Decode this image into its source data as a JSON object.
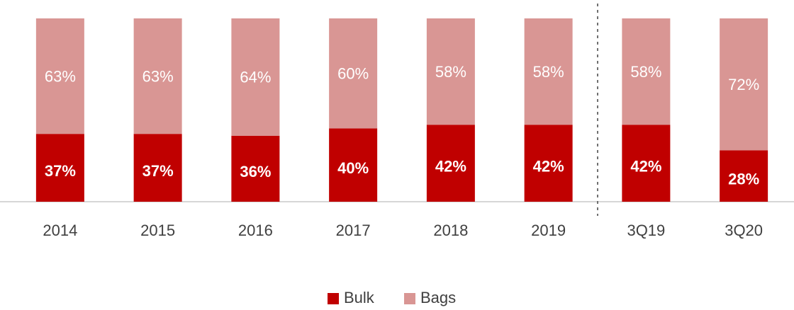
{
  "chart_data": {
    "type": "stacked_bar",
    "categories": [
      "2014",
      "2015",
      "2016",
      "2017",
      "2018",
      "2019",
      "3Q19",
      "3Q20"
    ],
    "series": [
      {
        "name": "Bulk",
        "color": "#c00000",
        "values": [
          37,
          37,
          36,
          40,
          42,
          42,
          42,
          28
        ],
        "value_labels": [
          "37%",
          "37%",
          "36%",
          "40%",
          "42%",
          "42%",
          "42%",
          "28%"
        ]
      },
      {
        "name": "Bags",
        "color": "#d99694",
        "values": [
          63,
          63,
          64,
          60,
          58,
          58,
          58,
          72
        ],
        "value_labels": [
          "63%",
          "63%",
          "64%",
          "60%",
          "58%",
          "58%",
          "58%",
          "72%"
        ]
      }
    ],
    "ylim": [
      0,
      100
    ],
    "legend": "bottom"
  }
}
